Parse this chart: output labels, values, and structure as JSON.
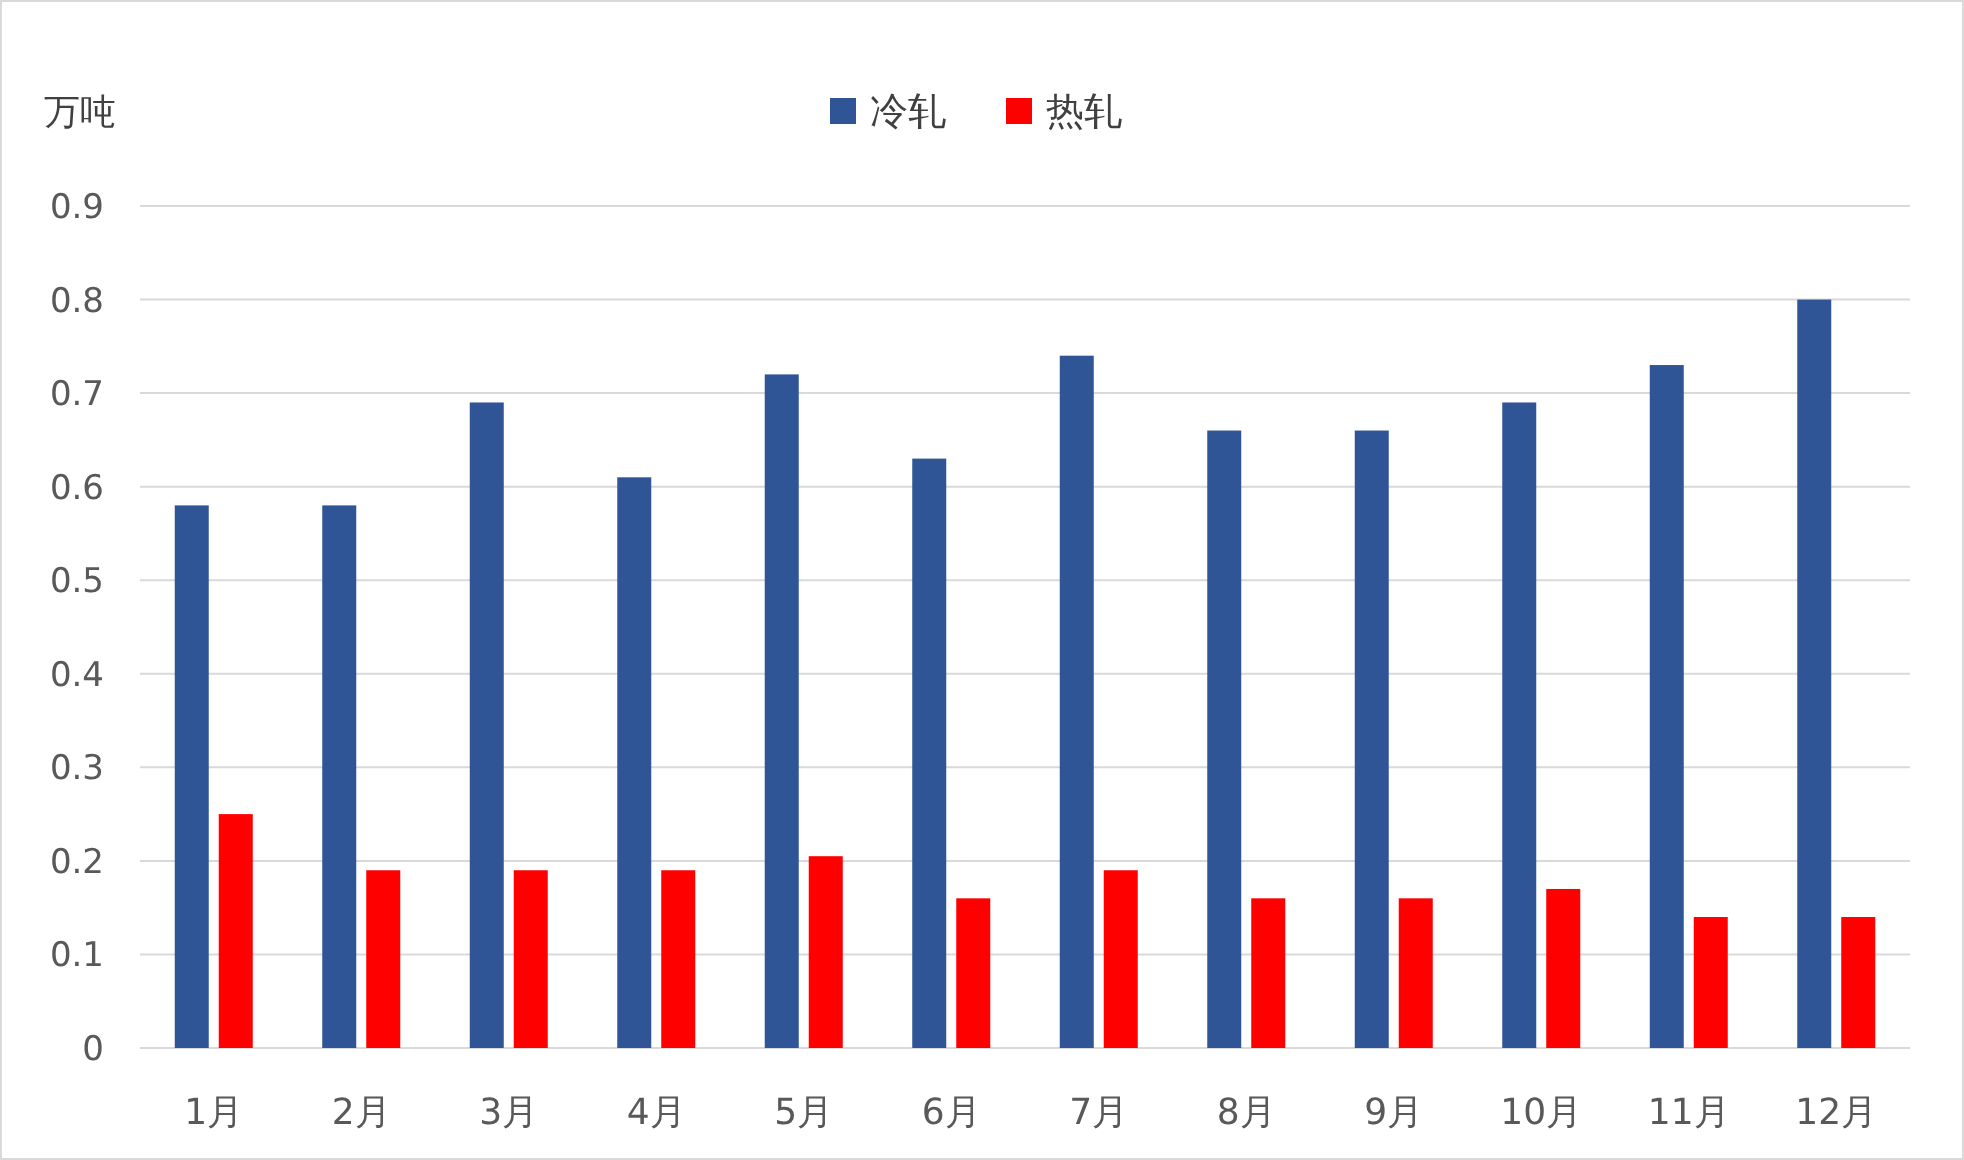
{
  "chart_data": {
    "type": "bar",
    "ylabel": "万吨",
    "categories": [
      "1月",
      "2月",
      "3月",
      "4月",
      "5月",
      "6月",
      "7月",
      "8月",
      "9月",
      "10月",
      "11月",
      "12月"
    ],
    "series": [
      {
        "name": "冷轧",
        "color": "#2f5597",
        "values": [
          0.58,
          0.58,
          0.69,
          0.61,
          0.72,
          0.63,
          0.74,
          0.66,
          0.66,
          0.69,
          0.73,
          0.8
        ]
      },
      {
        "name": "热轧",
        "color": "#ff0000",
        "values": [
          0.25,
          0.19,
          0.19,
          0.19,
          0.205,
          0.16,
          0.19,
          0.16,
          0.16,
          0.17,
          0.14,
          0.14
        ]
      }
    ],
    "ylim": [
      0,
      0.9
    ],
    "yticks": [
      0,
      0.1,
      0.2,
      0.3,
      0.4,
      0.5,
      0.6,
      0.7,
      0.8,
      0.9
    ],
    "grid": "y",
    "legend": "top"
  }
}
